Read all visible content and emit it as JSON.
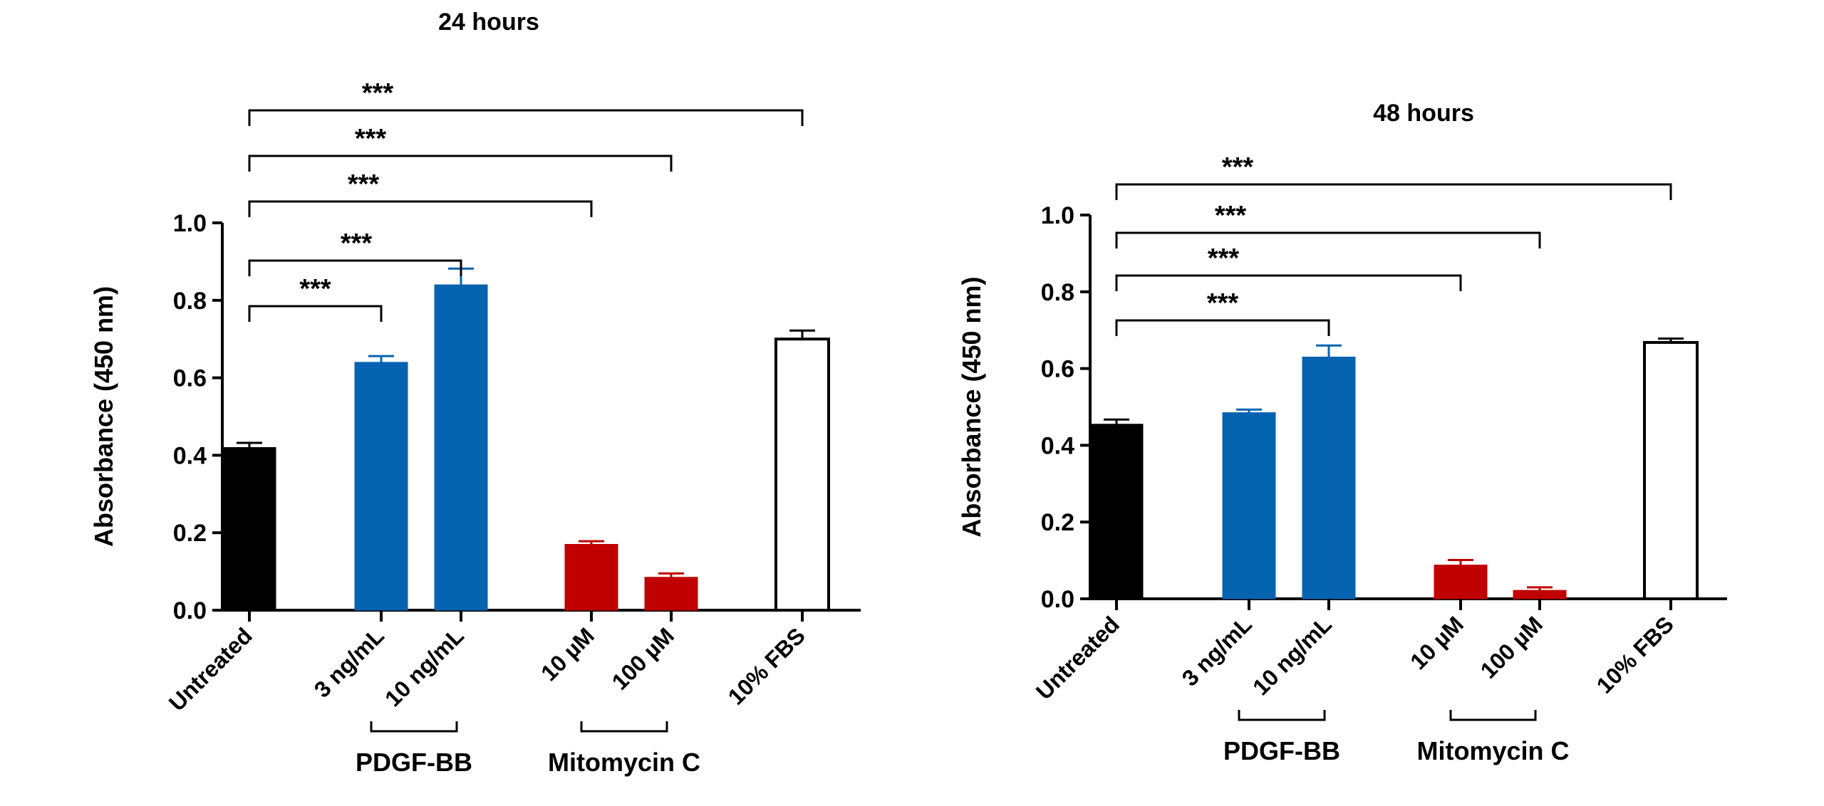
{
  "colors": {
    "untreated": "#000000",
    "pdgf": "#0563b0",
    "mitomycin": "#c00000",
    "fbs": "#ffffff"
  },
  "chart_data": [
    {
      "type": "bar",
      "title": "24 hours",
      "ylabel": "Absorbance (450 nm)",
      "ylim": [
        0,
        1.0
      ],
      "yticks": [
        "0.0",
        "0.2",
        "0.4",
        "0.6",
        "0.8",
        "1.0"
      ],
      "categories": [
        "Untreated",
        "3 ng/mL",
        "10 ng/mL",
        "10 µM",
        "100 µM",
        "10% FBS"
      ],
      "values": [
        0.42,
        0.64,
        0.84,
        0.17,
        0.085,
        0.7
      ],
      "errors": [
        0.012,
        0.016,
        0.042,
        0.008,
        0.01,
        0.022
      ],
      "bar_colors": [
        "untreated",
        "pdgf",
        "pdgf",
        "mitomycin",
        "mitomycin",
        "fbs"
      ],
      "groups": [
        {
          "label": "PDGF-BB",
          "from": 1,
          "to": 2
        },
        {
          "label": "Mitomycin C",
          "from": 3,
          "to": 4
        }
      ],
      "significance": [
        {
          "from": 0,
          "to": 1,
          "label": "***"
        },
        {
          "from": 0,
          "to": 2,
          "label": "***"
        },
        {
          "from": 0,
          "to": 3,
          "label": "***"
        },
        {
          "from": 0,
          "to": 4,
          "label": "***"
        },
        {
          "from": 0,
          "to": 5,
          "label": "***"
        }
      ]
    },
    {
      "type": "bar",
      "title": "48 hours",
      "ylabel": "Absorbance (450 nm)",
      "ylim": [
        0,
        1.0
      ],
      "yticks": [
        "0.0",
        "0.2",
        "0.4",
        "0.6",
        "0.8",
        "1.0"
      ],
      "categories": [
        "Untreated",
        "3 ng/mL",
        "10 ng/mL",
        "10 µM",
        "100 µM",
        "10% FBS"
      ],
      "values": [
        0.455,
        0.485,
        0.63,
        0.088,
        0.022,
        0.668
      ],
      "errors": [
        0.012,
        0.008,
        0.03,
        0.013,
        0.008,
        0.01
      ],
      "bar_colors": [
        "untreated",
        "pdgf",
        "pdgf",
        "mitomycin",
        "mitomycin",
        "fbs"
      ],
      "groups": [
        {
          "label": "PDGF-BB",
          "from": 1,
          "to": 2
        },
        {
          "label": "Mitomycin C",
          "from": 3,
          "to": 4
        }
      ],
      "significance": [
        {
          "from": 0,
          "to": 2,
          "label": "***"
        },
        {
          "from": 0,
          "to": 3,
          "label": "***"
        },
        {
          "from": 0,
          "to": 4,
          "label": "***"
        },
        {
          "from": 0,
          "to": 5,
          "label": "***"
        }
      ]
    }
  ]
}
